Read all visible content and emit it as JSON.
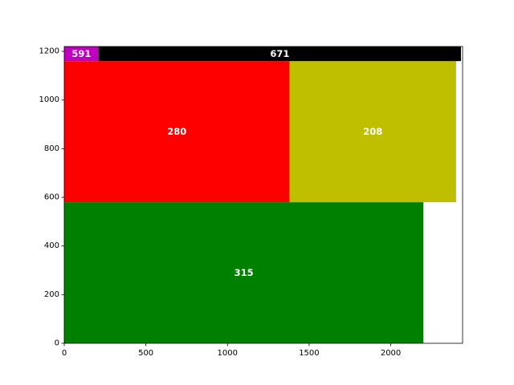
{
  "chart_data": {
    "type": "treemap",
    "title": "",
    "xlabel": "",
    "ylabel": "",
    "xlim": [
      0,
      2440
    ],
    "ylim": [
      0,
      1220
    ],
    "grid": false,
    "x_ticks": [
      0,
      500,
      1000,
      1500,
      2000
    ],
    "y_ticks": [
      0,
      200,
      400,
      600,
      800,
      1000,
      1200
    ],
    "rectangles": [
      {
        "label": "315",
        "x0": 0,
        "y0": 0,
        "x1": 2200,
        "y1": 580,
        "color": "#008000"
      },
      {
        "label": "280",
        "x0": 0,
        "y0": 580,
        "x1": 1380,
        "y1": 1160,
        "color": "#ff0000"
      },
      {
        "label": "208",
        "x0": 1380,
        "y0": 580,
        "x1": 2400,
        "y1": 1160,
        "color": "#bfbf00"
      },
      {
        "label": "591",
        "x0": 0,
        "y0": 1160,
        "x1": 210,
        "y1": 1220,
        "color": "#bf00bf"
      },
      {
        "label": "671",
        "x0": 210,
        "y0": 1160,
        "x1": 2430,
        "y1": 1220,
        "color": "#000000"
      }
    ]
  }
}
